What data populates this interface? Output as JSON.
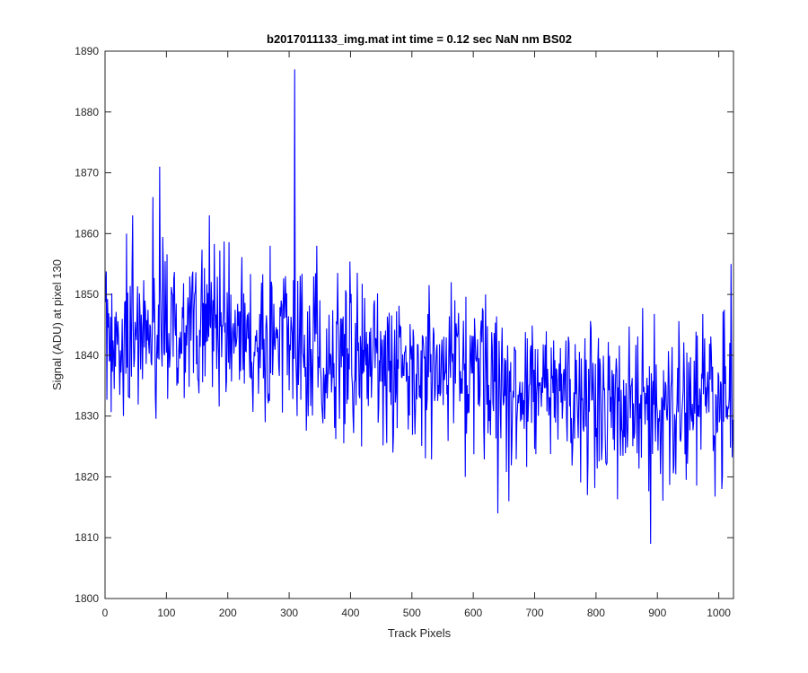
{
  "chart_data": {
    "type": "line",
    "title": "b2017011133_img.mat int time = 0.12 sec  NaN nm BS02",
    "xlabel": "Track Pixels",
    "ylabel": "Signal (ADU) at pixel 130",
    "xlim": [
      0,
      1024
    ],
    "ylim": [
      1800,
      1890
    ],
    "xticks": [
      0,
      100,
      200,
      300,
      400,
      500,
      600,
      700,
      800,
      900,
      1000
    ],
    "yticks": [
      1800,
      1810,
      1820,
      1830,
      1840,
      1850,
      1860,
      1870,
      1880,
      1890
    ],
    "grid": false,
    "legend": "none",
    "series_color": "#0000ff",
    "n_points": 1024,
    "trend": {
      "x": [
        0,
        100,
        200,
        300,
        400,
        500,
        600,
        700,
        800,
        900,
        1024
      ],
      "y": [
        1842,
        1845,
        1844,
        1842,
        1840,
        1838,
        1836,
        1834,
        1833,
        1832,
        1832
      ]
    },
    "noise_amplitude": 7,
    "notable_points": [
      {
        "x": 0,
        "y": 1854
      },
      {
        "x": 30,
        "y": 1830
      },
      {
        "x": 35,
        "y": 1860
      },
      {
        "x": 45,
        "y": 1863
      },
      {
        "x": 78,
        "y": 1866
      },
      {
        "x": 89,
        "y": 1871
      },
      {
        "x": 170,
        "y": 1863
      },
      {
        "x": 261,
        "y": 1829
      },
      {
        "x": 309,
        "y": 1887
      },
      {
        "x": 313,
        "y": 1830
      },
      {
        "x": 345,
        "y": 1858
      },
      {
        "x": 418,
        "y": 1825
      },
      {
        "x": 469,
        "y": 1824
      },
      {
        "x": 564,
        "y": 1852
      },
      {
        "x": 587,
        "y": 1820
      },
      {
        "x": 640,
        "y": 1814
      },
      {
        "x": 658,
        "y": 1816
      },
      {
        "x": 786,
        "y": 1817
      },
      {
        "x": 889,
        "y": 1809
      },
      {
        "x": 1005,
        "y": 1818
      },
      {
        "x": 1020,
        "y": 1855
      }
    ]
  }
}
